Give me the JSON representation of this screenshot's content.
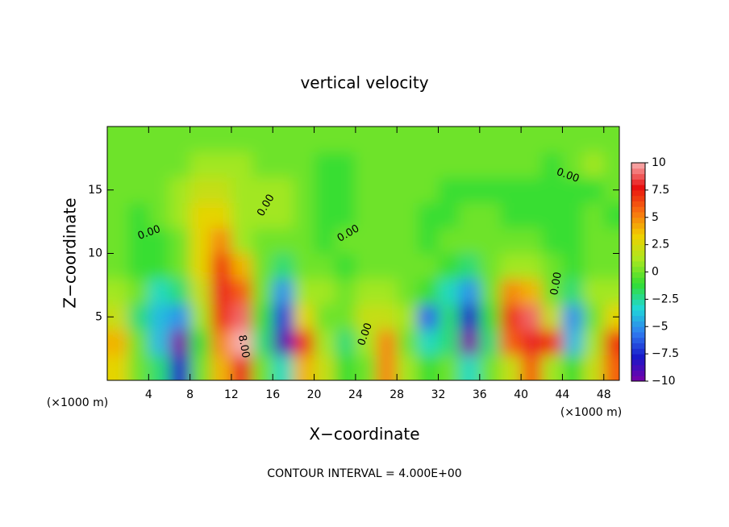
{
  "chart_data": {
    "type": "heatmap",
    "title": "vertical velocity",
    "xlabel": "X−coordinate",
    "ylabel": "Z−coordinate",
    "x_unit": "(×1000 m)",
    "footnote": "CONTOUR INTERVAL = 4.000E+00",
    "contour_labels": [
      "0.00",
      "0.00",
      "0.00",
      "0.00",
      "0.00",
      "0.00",
      "8.00"
    ],
    "x": [
      1,
      3,
      5,
      7,
      9,
      11,
      13,
      15,
      17,
      19,
      21,
      23,
      25,
      27,
      29,
      31,
      33,
      35,
      37,
      39,
      41,
      43,
      45,
      47,
      49
    ],
    "y": [
      1,
      3,
      5,
      7,
      9,
      11,
      13,
      15,
      17,
      19
    ],
    "z": [
      [
        3,
        0,
        -2,
        -8,
        0,
        4,
        8,
        0,
        -3,
        4,
        2,
        -1,
        0,
        5,
        1,
        -1,
        0,
        -3,
        0,
        2,
        6,
        1,
        -1,
        2,
        6
      ],
      [
        4,
        0,
        -4,
        -10,
        -1,
        5,
        10,
        -2,
        -9,
        7,
        1,
        -2,
        1,
        5,
        0,
        -3,
        -2,
        -10,
        -2,
        6,
        8,
        7,
        -4,
        1,
        7
      ],
      [
        2,
        -2,
        -4,
        -5,
        1,
        7,
        9,
        -1,
        -7,
        3,
        0,
        0,
        2,
        2,
        1,
        -6,
        -2,
        -8,
        -1,
        7,
        9,
        2,
        -5,
        0,
        3
      ],
      [
        1,
        0,
        -3,
        -2,
        2,
        8,
        6,
        0,
        -5,
        1,
        1,
        0,
        1,
        1,
        0,
        -1,
        -3,
        -5,
        0,
        5,
        4,
        0,
        -2,
        1,
        1
      ],
      [
        0,
        -1,
        -1,
        0,
        3,
        7,
        4,
        0,
        -2,
        0,
        0,
        -1,
        0,
        0,
        0,
        0,
        -1,
        -2,
        0,
        1,
        1,
        0,
        -1,
        0,
        0
      ],
      [
        0,
        -1,
        -1,
        0,
        3,
        5,
        1,
        0,
        0,
        0,
        -1,
        0,
        0,
        0,
        0,
        -1,
        0,
        0,
        0,
        0,
        0,
        -1,
        -1,
        0,
        0
      ],
      [
        0,
        -1,
        0,
        1,
        3,
        3,
        1,
        1,
        1,
        0,
        -1,
        -1,
        0,
        0,
        0,
        -1,
        -1,
        0,
        0,
        -1,
        -1,
        -1,
        -1,
        0,
        -1
      ],
      [
        0,
        0,
        0,
        1,
        2,
        2,
        1,
        1,
        1,
        0,
        -1,
        -1,
        0,
        0,
        0,
        0,
        -1,
        -1,
        -1,
        -1,
        -1,
        -1,
        -1,
        -1,
        0
      ],
      [
        0,
        0,
        0,
        0,
        1,
        1,
        1,
        0,
        0,
        0,
        -1,
        -1,
        0,
        0,
        0,
        0,
        0,
        0,
        0,
        0,
        0,
        -1,
        0,
        1,
        0
      ],
      [
        0,
        0,
        0,
        0,
        0,
        0,
        0,
        0,
        0,
        0,
        0,
        0,
        0,
        0,
        0,
        0,
        0,
        0,
        0,
        0,
        0,
        0,
        0,
        0,
        0
      ]
    ],
    "xlim": [
      0,
      49.5
    ],
    "ylim": [
      0,
      20
    ],
    "xticks": [
      4,
      8,
      12,
      16,
      20,
      24,
      28,
      32,
      36,
      40,
      44,
      48
    ],
    "yticks": [
      5,
      10,
      15
    ],
    "zlim": [
      -10,
      10
    ],
    "colorbar_ticks": [
      10,
      7.5,
      5,
      2.5,
      0,
      {
        "value": -2.5,
        "label": "−2.5"
      },
      {
        "value": -5,
        "label": "−5"
      },
      {
        "value": -7.5,
        "label": "−7.5"
      },
      {
        "value": -10,
        "label": "−10"
      }
    ],
    "colorscale": [
      "#7a00a8",
      "#1818c8",
      "#2f7cf0",
      "#20d8d8",
      "#33dd33",
      "#a8e820",
      "#f0d000",
      "#f87010",
      "#e81010",
      "#f8b0b0"
    ]
  }
}
